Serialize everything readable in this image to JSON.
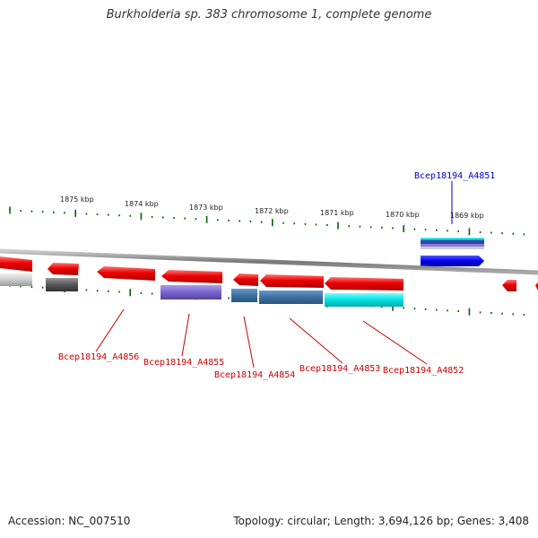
{
  "title": "Burkholderia sp. 383 chromosome 1, complete genome",
  "footer": {
    "accession": "Accession: NC_007510",
    "summary": "Topology: circular; Length: 3,694,126 bp; Genes: 3,408"
  },
  "scale_labels": [
    "1875 kbp",
    "1874 kbp",
    "1873 kbp",
    "1872 kbp",
    "1871 kbp",
    "1870 kbp",
    "1869 kbp"
  ],
  "gene_labels": [
    {
      "name": "Bcep18194_A4851",
      "strand": "forward"
    },
    {
      "name": "Bcep18194_A4856",
      "strand": "reverse"
    },
    {
      "name": "Bcep18194_A4855",
      "strand": "reverse"
    },
    {
      "name": "Bcep18194_A4854",
      "strand": "reverse"
    },
    {
      "name": "Bcep18194_A4853",
      "strand": "reverse"
    },
    {
      "name": "Bcep18194_A4852",
      "strand": "reverse"
    }
  ],
  "colors": {
    "forward_label": "#0000cc",
    "reverse_label": "#cc0000",
    "gene_red": "#ee0000",
    "forward_gene": "#0000ee",
    "tick": "#006600",
    "backbone": "#888888",
    "cog_purple": "#8877dd",
    "cog_steel": "#4477aa",
    "cog_cyan": "#00dddd",
    "cog_gray": "#666666",
    "cog_lightgray": "#cccccc",
    "cog_navy": "#3344aa"
  }
}
